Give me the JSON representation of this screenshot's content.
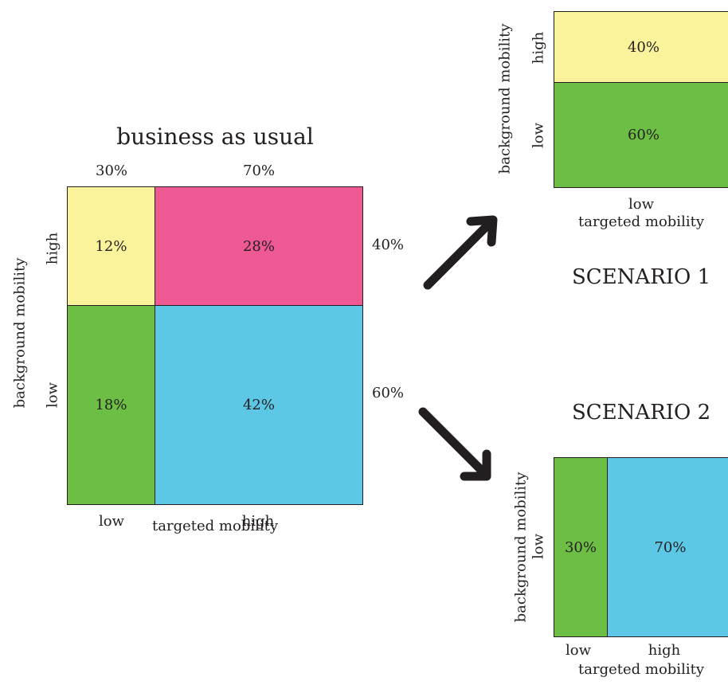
{
  "colors": {
    "yellow": "#fbf39c",
    "pink": "#ee5994",
    "green": "#6dbe45",
    "blue": "#5dc8e6",
    "outline": "#231f20"
  },
  "main": {
    "title": "business as usual",
    "col_pct": [
      "30%",
      "70%"
    ],
    "row_pct": [
      "40%",
      "60%"
    ],
    "cells": {
      "high_low": "12%",
      "high_high": "28%",
      "low_low": "18%",
      "low_high": "42%"
    },
    "x_ticks": [
      "low",
      "high"
    ],
    "y_ticks": [
      "high",
      "low"
    ],
    "xlabel": "targeted mobility",
    "ylabel": "background mobility"
  },
  "scenario1": {
    "title": "SCENARIO 1",
    "cells": {
      "high": "40%",
      "low": "60%"
    },
    "y_ticks": [
      "high",
      "low"
    ],
    "x_tick": "low",
    "xlabel": "targeted mobility",
    "ylabel": "background mobility"
  },
  "scenario2": {
    "title": "SCENARIO 2",
    "cells": {
      "low": "30%",
      "high": "70%"
    },
    "y_tick": "low",
    "x_ticks": [
      "low",
      "high"
    ],
    "xlabel": "targeted mobility",
    "ylabel": "background mobility"
  },
  "arrows": [
    "arrow-up-right-icon",
    "arrow-down-right-icon"
  ]
}
